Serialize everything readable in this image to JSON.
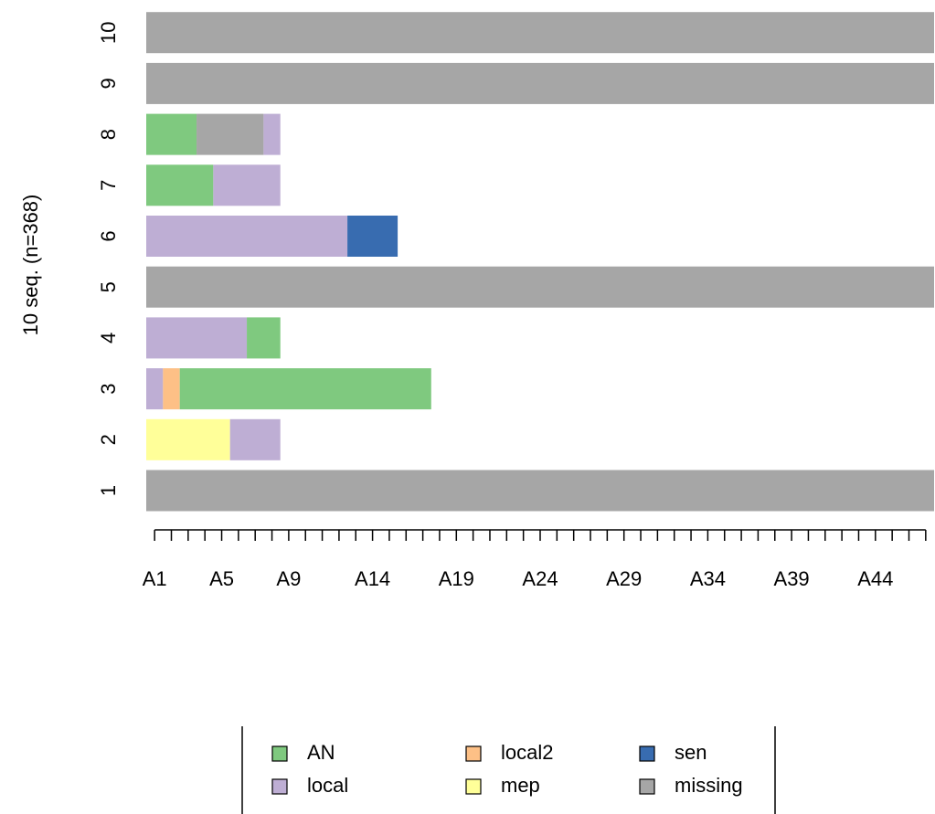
{
  "chart_data": {
    "type": "sequence-index",
    "ylabel": "10 seq. (n=368)",
    "xlim": [
      0,
      47
    ],
    "x_categories": [
      "A1",
      null,
      null,
      null,
      "A5",
      null,
      null,
      null,
      "A9",
      null,
      null,
      null,
      null,
      "A14",
      null,
      null,
      null,
      null,
      "A19",
      null,
      null,
      null,
      null,
      "A24",
      null,
      null,
      null,
      null,
      "A29",
      null,
      null,
      null,
      null,
      "A34",
      null,
      null,
      null,
      null,
      "A39",
      null,
      null,
      null,
      null,
      "A44",
      null,
      null,
      null
    ],
    "states": [
      {
        "name": "AN",
        "color": "#7fc97f"
      },
      {
        "name": "local",
        "color": "#beaed4"
      },
      {
        "name": "local2",
        "color": "#fdc086"
      },
      {
        "name": "mep",
        "color": "#ffff99"
      },
      {
        "name": "sen",
        "color": "#386cb0"
      },
      {
        "name": "missing",
        "color": "#a6a6a6"
      }
    ],
    "sequences": [
      {
        "label": "1",
        "segments": [
          {
            "state": 5,
            "length": 47
          }
        ]
      },
      {
        "label": "2",
        "segments": [
          {
            "state": 3,
            "length": 5
          },
          {
            "state": 1,
            "length": 3
          }
        ]
      },
      {
        "label": "3",
        "segments": [
          {
            "state": 1,
            "length": 1
          },
          {
            "state": 2,
            "length": 1
          },
          {
            "state": 0,
            "length": 15
          }
        ]
      },
      {
        "label": "4",
        "segments": [
          {
            "state": 1,
            "length": 6
          },
          {
            "state": 0,
            "length": 2
          }
        ]
      },
      {
        "label": "5",
        "segments": [
          {
            "state": 5,
            "length": 47
          }
        ]
      },
      {
        "label": "6",
        "segments": [
          {
            "state": 1,
            "length": 12
          },
          {
            "state": 4,
            "length": 3
          }
        ]
      },
      {
        "label": "7",
        "segments": [
          {
            "state": 0,
            "length": 4
          },
          {
            "state": 1,
            "length": 4
          }
        ]
      },
      {
        "label": "8",
        "segments": [
          {
            "state": 0,
            "length": 3
          },
          {
            "state": 5,
            "length": 4
          },
          {
            "state": 1,
            "length": 1
          }
        ]
      },
      {
        "label": "9",
        "segments": [
          {
            "state": 5,
            "length": 47
          }
        ]
      },
      {
        "label": "10",
        "segments": [
          {
            "state": 5,
            "length": 47
          }
        ]
      }
    ]
  }
}
